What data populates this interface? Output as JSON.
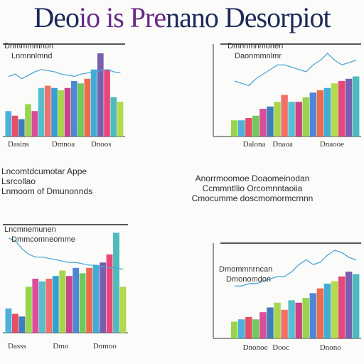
{
  "title": {
    "part1": "Deo",
    "part2": "io is Pre",
    "part3": "nano Desorpiot"
  },
  "middle_text": {
    "left_lines": [
      "Lncomtdcumotar Appe",
      "Lsrcollao",
      "Lnmoom of Dmunonnds"
    ],
    "right_lines": [
      "Anorrmoomoe Doaomeinodan",
      "Ccmmntllio Orcomnntaoiia",
      "Cmocumme doscmomormcrnnn"
    ]
  },
  "chart_data": [
    {
      "type": "bar",
      "title": "",
      "legend": [
        "Dnmmmmnon",
        "Lnmnnlmnd"
      ],
      "x_tick_labels": [
        "Dasins",
        "Dmnoa",
        "Dnoos"
      ],
      "categories": [
        "1",
        "2",
        "3",
        "4",
        "5",
        "6",
        "7",
        "8",
        "9",
        "10",
        "11",
        "12",
        "13",
        "14",
        "15",
        "16",
        "17",
        "18"
      ],
      "series": [
        {
          "values": [
            22,
            18,
            15,
            28,
            22,
            42,
            44,
            42,
            40,
            42,
            48,
            46,
            50,
            58,
            72,
            58,
            34,
            30
          ]
        }
      ],
      "line": [
        52,
        54,
        50,
        53,
        56,
        58,
        57,
        56,
        54,
        53,
        52,
        54,
        55,
        56,
        57,
        58,
        56,
        55
      ],
      "ylim": [
        0,
        80
      ],
      "colors": [
        "#3aa7d6",
        "#e23b55",
        "#2b6fb5",
        "#8ecf3a",
        "#d63a8e",
        "#43b8c9",
        "#f1605a",
        "#1f95c9",
        "#9bd13b",
        "#c62e79",
        "#3c7ad0",
        "#61c34a",
        "#e95b3b",
        "#2ea3d5",
        "#6b4da5",
        "#e8336a",
        "#3bb2b4",
        "#a8d63a"
      ]
    },
    {
      "type": "bar",
      "title": "",
      "legend": [
        "Dmnnmnmonen",
        "Daonmmnlmr"
      ],
      "x_tick_labels": [
        "Dalona",
        "Dnaoa",
        "Dnaooe"
      ],
      "categories": [
        "1",
        "2",
        "3",
        "4",
        "5",
        "6",
        "7",
        "8",
        "9",
        "10",
        "11",
        "12",
        "13",
        "14",
        "15",
        "16",
        "17",
        "18"
      ],
      "series": [
        {
          "values": [
            14,
            14,
            16,
            18,
            24,
            26,
            30,
            36,
            30,
            30,
            34,
            38,
            40,
            42,
            46,
            48,
            50,
            52
          ]
        }
      ],
      "line": [
        48,
        46,
        44,
        50,
        54,
        58,
        62,
        62,
        60,
        58,
        56,
        62,
        66,
        72,
        66,
        62,
        64,
        66
      ],
      "ylim": [
        0,
        80
      ],
      "colors": [
        "#8ecf3a",
        "#3aa7d6",
        "#e23b55",
        "#61c34a",
        "#d63a8e",
        "#2b6fb5",
        "#9bd13b",
        "#f1605a",
        "#43b8c9",
        "#c62e79",
        "#8ecf3a",
        "#3c7ad0",
        "#e95b3b",
        "#2ea3d5",
        "#a8d63a",
        "#e8336a",
        "#6b4da5",
        "#3bb2b4"
      ]
    },
    {
      "type": "bar",
      "title": "",
      "legend": [
        "Lncmnemunen",
        "Dmmcomneomme"
      ],
      "x_tick_labels": [
        "Dasss",
        "Dmo",
        "Dnmoo"
      ],
      "categories": [
        "1",
        "2",
        "3",
        "4",
        "5",
        "6",
        "7",
        "8",
        "9",
        "10",
        "11",
        "12",
        "13",
        "14",
        "15",
        "16",
        "17",
        "18"
      ],
      "series": [
        {
          "values": [
            18,
            14,
            12,
            34,
            40,
            38,
            40,
            42,
            46,
            42,
            48,
            44,
            48,
            50,
            52,
            58,
            74,
            34
          ]
        }
      ],
      "line": [
        70,
        68,
        62,
        58,
        56,
        56,
        55,
        54,
        53,
        52,
        52,
        51,
        50,
        50,
        49,
        48,
        48,
        47
      ],
      "ylim": [
        0,
        80
      ],
      "colors": [
        "#3aa7d6",
        "#e23b55",
        "#2b6fb5",
        "#8ecf3a",
        "#d63a8e",
        "#43b8c9",
        "#f1605a",
        "#1f95c9",
        "#9bd13b",
        "#c62e79",
        "#3c7ad0",
        "#61c34a",
        "#e95b3b",
        "#2ea3d5",
        "#6b4da5",
        "#e8336a",
        "#3bb2b4",
        "#a8d63a"
      ]
    },
    {
      "type": "bar",
      "title": "",
      "legend": [
        "Dmommnrncan",
        "Dmonomdon"
      ],
      "x_tick_labels": [
        "Dnonoe",
        "Dooc",
        "Dnono"
      ],
      "categories": [
        "1",
        "2",
        "3",
        "4",
        "5",
        "6",
        "7",
        "8",
        "9",
        "10",
        "11",
        "12",
        "13",
        "14",
        "15",
        "16",
        "17",
        "18"
      ],
      "series": [
        {
          "values": [
            14,
            16,
            18,
            16,
            22,
            26,
            30,
            24,
            32,
            30,
            34,
            38,
            42,
            46,
            48,
            52,
            56,
            54
          ]
        }
      ],
      "line": [
        44,
        44,
        46,
        46,
        48,
        50,
        52,
        52,
        56,
        62,
        66,
        62,
        64,
        70,
        74,
        72,
        68,
        66
      ],
      "ylim": [
        0,
        80
      ],
      "colors": [
        "#8ecf3a",
        "#3aa7d6",
        "#e23b55",
        "#61c34a",
        "#d63a8e",
        "#2b6fb5",
        "#9bd13b",
        "#f1605a",
        "#43b8c9",
        "#c62e79",
        "#8ecf3a",
        "#3c7ad0",
        "#e95b3b",
        "#2ea3d5",
        "#a8d63a",
        "#e8336a",
        "#6b4da5",
        "#3bb2b4"
      ]
    }
  ]
}
